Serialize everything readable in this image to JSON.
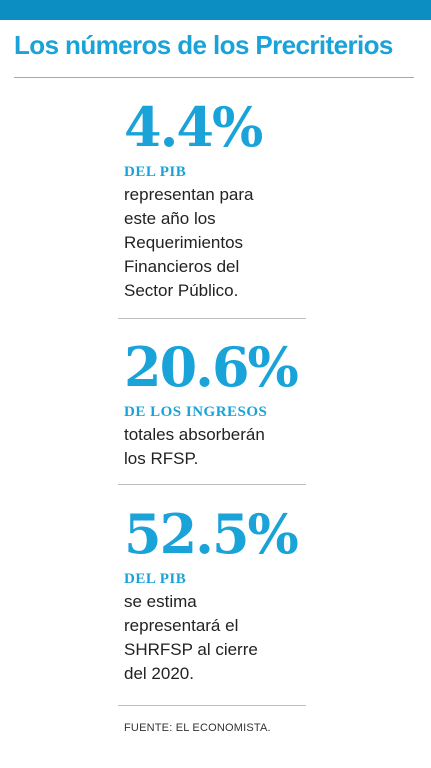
{
  "header": {
    "title": "Los números de los Precriterios"
  },
  "stats": [
    {
      "value": "4.4%",
      "lead": "DEL PIB",
      "description": "representan para\neste año los\nRequerimientos\nFinancieros del\nSector Público."
    },
    {
      "value": "20.6%",
      "lead": "DE LOS INGRESOS",
      "description": "totales absorberán\nlos RFSP."
    },
    {
      "value": "52.5%",
      "lead": "DEL PIB",
      "description": "se estima\nrepresentará el\nSHRFSP al cierre\ndel 2020."
    }
  ],
  "source": "FUENTE: EL ECONOMISTA.",
  "colors": {
    "accent": "#1aa3d8",
    "bar": "#0d8ec2",
    "text": "#222222"
  }
}
